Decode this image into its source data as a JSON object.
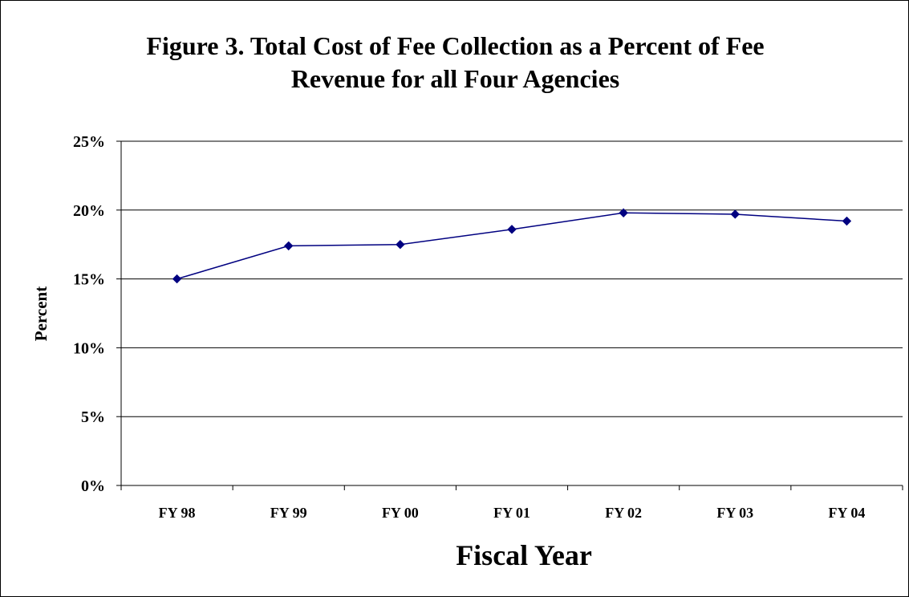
{
  "chart_data": {
    "type": "line",
    "title_lines": [
      "Figure 3. Total Cost of Fee Collection as a Percent of Fee",
      "Revenue for all Four Agencies"
    ],
    "xlabel": "Fiscal Year",
    "ylabel": "Percent",
    "categories": [
      "FY 98",
      "FY 99",
      "FY 00",
      "FY 01",
      "FY 02",
      "FY 03",
      "FY 04"
    ],
    "series": [
      {
        "values": [
          15.0,
          17.4,
          17.5,
          18.6,
          19.8,
          19.7,
          19.2
        ],
        "color": "#000080",
        "marker": "diamond"
      }
    ],
    "ylim": [
      0,
      25
    ],
    "y_ticks": [
      0,
      5,
      10,
      15,
      20,
      25
    ],
    "y_tick_labels": [
      "0%",
      "5%",
      "10%",
      "15%",
      "20%",
      "25%"
    ],
    "grid": true,
    "legend": "none"
  }
}
